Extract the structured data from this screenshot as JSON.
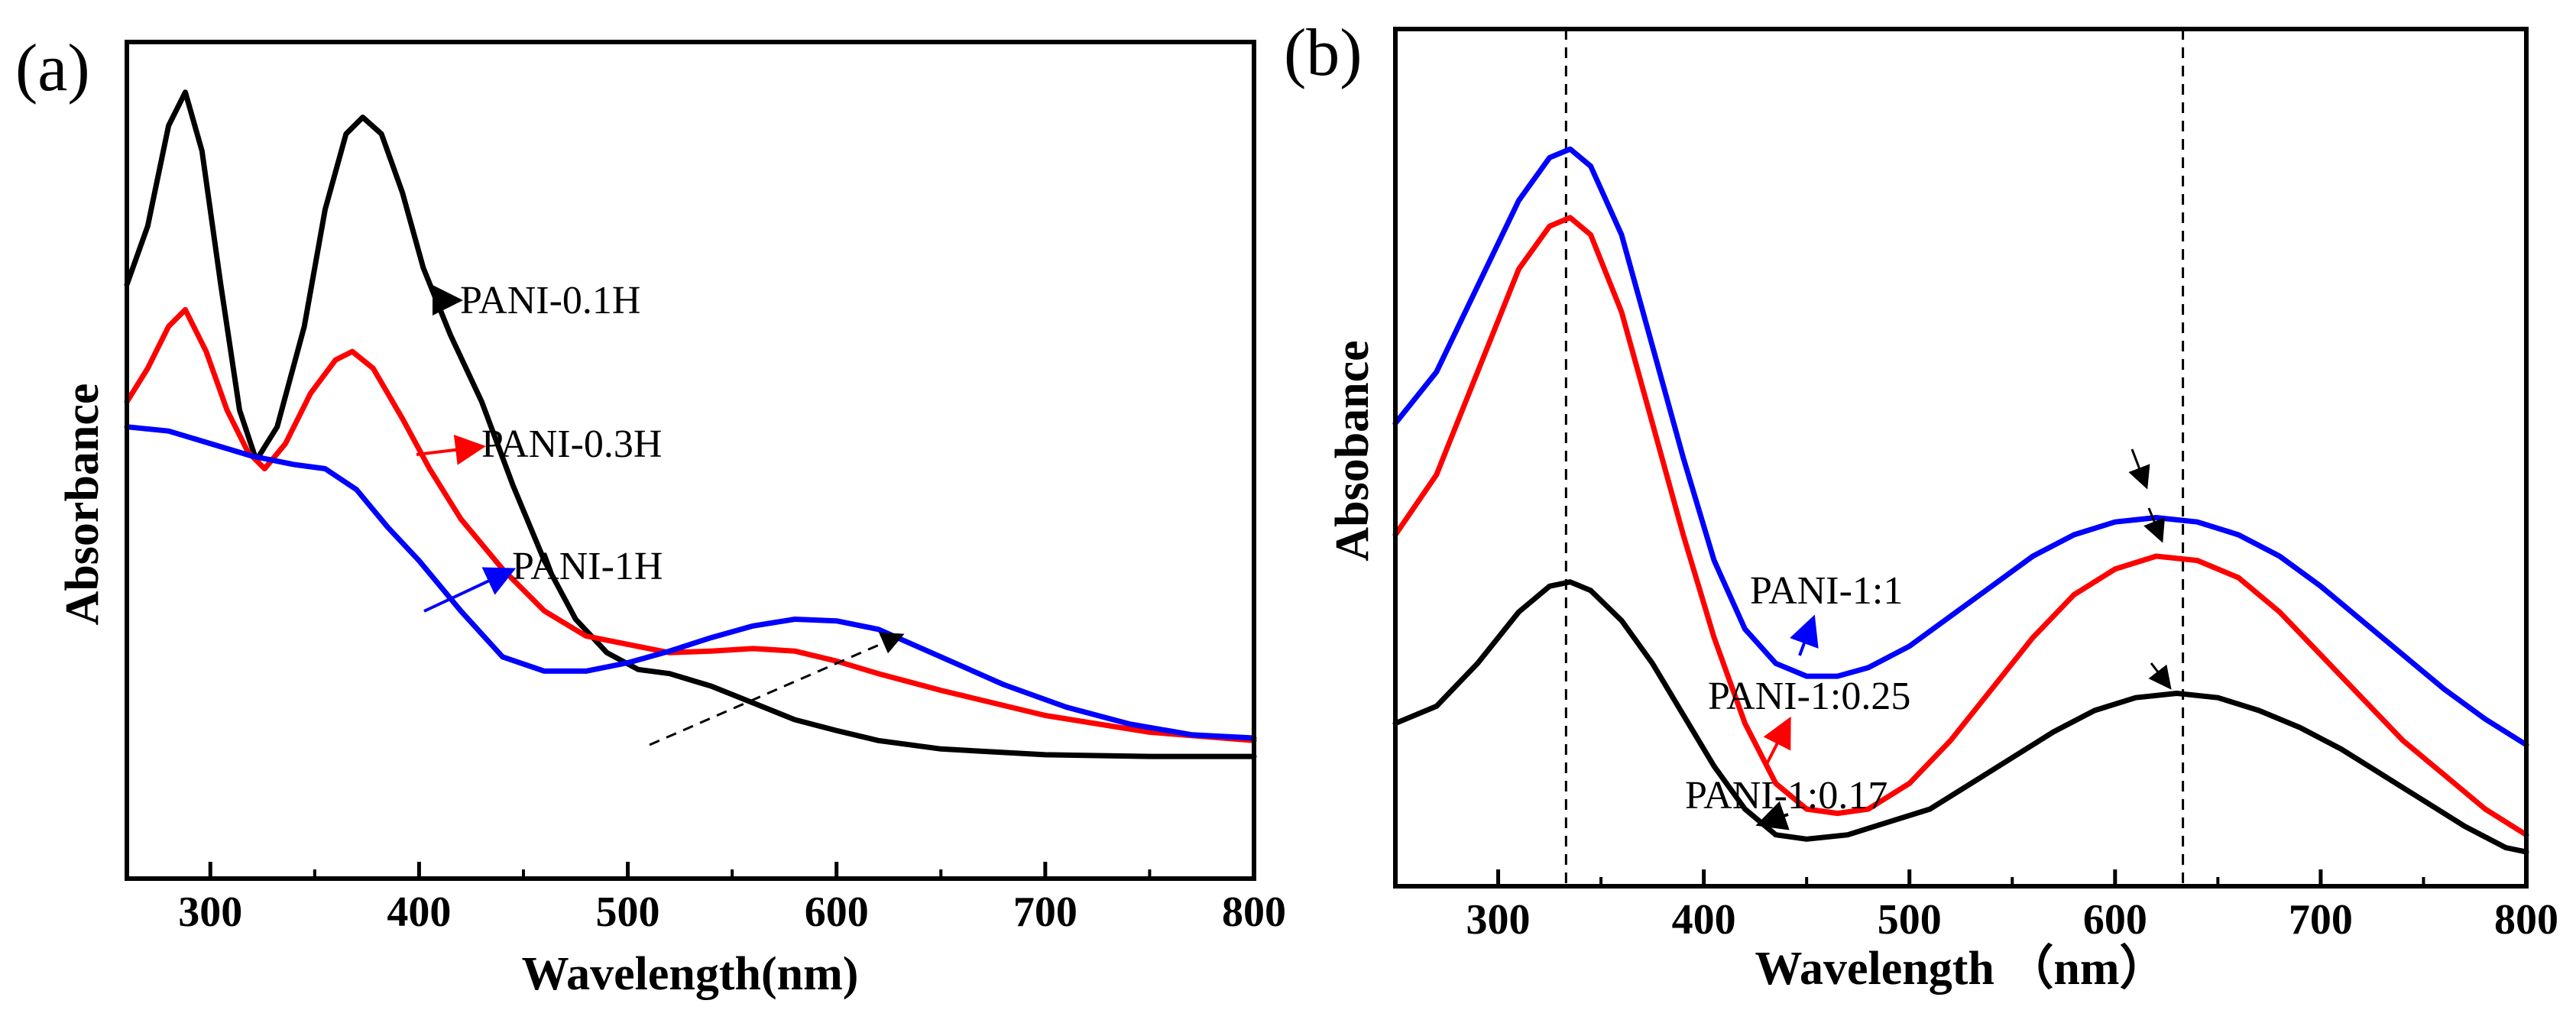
{
  "chart_data": [
    {
      "panel_label": "(a)",
      "type": "line",
      "xlabel": "Wavelength(nm)",
      "ylabel": "Absorbance",
      "xlim": [
        260,
        800
      ],
      "ylim": [
        0,
        1
      ],
      "x_ticks": [
        300,
        400,
        500,
        600,
        700,
        800
      ],
      "y_ticks_shown": false,
      "grid": false,
      "series": [
        {
          "name": "PANI-0.1H",
          "color": "#000000",
          "points": [
            [
              260,
              0.71
            ],
            [
              270,
              0.78
            ],
            [
              280,
              0.9
            ],
            [
              288,
              0.94
            ],
            [
              296,
              0.87
            ],
            [
              305,
              0.71
            ],
            [
              314,
              0.56
            ],
            [
              322,
              0.5
            ],
            [
              332,
              0.54
            ],
            [
              345,
              0.66
            ],
            [
              355,
              0.8
            ],
            [
              365,
              0.89
            ],
            [
              373,
              0.91
            ],
            [
              382,
              0.89
            ],
            [
              392,
              0.82
            ],
            [
              402,
              0.73
            ],
            [
              415,
              0.65
            ],
            [
              430,
              0.57
            ],
            [
              445,
              0.47
            ],
            [
              460,
              0.38
            ],
            [
              475,
              0.31
            ],
            [
              490,
              0.27
            ],
            [
              505,
              0.25
            ],
            [
              520,
              0.245
            ],
            [
              540,
              0.23
            ],
            [
              560,
              0.21
            ],
            [
              580,
              0.19
            ],
            [
              600,
              0.177
            ],
            [
              620,
              0.165
            ],
            [
              650,
              0.155
            ],
            [
              700,
              0.148
            ],
            [
              750,
              0.146
            ],
            [
              800,
              0.146
            ]
          ]
        },
        {
          "name": "PANI-0.3H",
          "color": "#ff0000",
          "points": [
            [
              260,
              0.57
            ],
            [
              270,
              0.61
            ],
            [
              280,
              0.66
            ],
            [
              288,
              0.68
            ],
            [
              298,
              0.63
            ],
            [
              308,
              0.56
            ],
            [
              318,
              0.51
            ],
            [
              326,
              0.49
            ],
            [
              336,
              0.52
            ],
            [
              348,
              0.58
            ],
            [
              360,
              0.62
            ],
            [
              368,
              0.63
            ],
            [
              378,
              0.61
            ],
            [
              392,
              0.55
            ],
            [
              405,
              0.49
            ],
            [
              420,
              0.43
            ],
            [
              440,
              0.37
            ],
            [
              460,
              0.32
            ],
            [
              480,
              0.29
            ],
            [
              500,
              0.28
            ],
            [
              520,
              0.27
            ],
            [
              540,
              0.272
            ],
            [
              560,
              0.275
            ],
            [
              580,
              0.272
            ],
            [
              600,
              0.26
            ],
            [
              620,
              0.245
            ],
            [
              650,
              0.225
            ],
            [
              700,
              0.195
            ],
            [
              750,
              0.175
            ],
            [
              800,
              0.165
            ]
          ]
        },
        {
          "name": "PANI-1H",
          "color": "#0000ff",
          "points": [
            [
              260,
              0.54
            ],
            [
              280,
              0.535
            ],
            [
              300,
              0.52
            ],
            [
              320,
              0.505
            ],
            [
              340,
              0.495
            ],
            [
              355,
              0.49
            ],
            [
              370,
              0.465
            ],
            [
              385,
              0.42
            ],
            [
              400,
              0.38
            ],
            [
              420,
              0.32
            ],
            [
              440,
              0.265
            ],
            [
              460,
              0.248
            ],
            [
              480,
              0.248
            ],
            [
              500,
              0.258
            ],
            [
              520,
              0.272
            ],
            [
              540,
              0.288
            ],
            [
              560,
              0.302
            ],
            [
              580,
              0.31
            ],
            [
              600,
              0.308
            ],
            [
              620,
              0.298
            ],
            [
              650,
              0.265
            ],
            [
              680,
              0.232
            ],
            [
              710,
              0.205
            ],
            [
              740,
              0.185
            ],
            [
              770,
              0.172
            ],
            [
              800,
              0.168
            ]
          ]
        }
      ],
      "annotations": [
        "PANI-0.1H",
        "PANI-0.3H",
        "PANI-1H"
      ]
    },
    {
      "panel_label": "(b)",
      "type": "line",
      "xlabel": "Wavelength （nm）",
      "ylabel": "Absobance",
      "xlim": [
        250,
        800
      ],
      "ylim": [
        0,
        1
      ],
      "x_ticks": [
        300,
        400,
        500,
        600,
        700,
        800
      ],
      "y_ticks_shown": false,
      "grid": false,
      "vlines": [
        333,
        633
      ],
      "series": [
        {
          "name": "PANI-1:1",
          "color": "#0000ff",
          "points": [
            [
              250,
              0.54
            ],
            [
              270,
              0.6
            ],
            [
              290,
              0.7
            ],
            [
              310,
              0.8
            ],
            [
              325,
              0.85
            ],
            [
              335,
              0.86
            ],
            [
              345,
              0.84
            ],
            [
              360,
              0.76
            ],
            [
              375,
              0.63
            ],
            [
              390,
              0.5
            ],
            [
              405,
              0.38
            ],
            [
              420,
              0.3
            ],
            [
              435,
              0.26
            ],
            [
              450,
              0.245
            ],
            [
              465,
              0.245
            ],
            [
              480,
              0.255
            ],
            [
              500,
              0.28
            ],
            [
              520,
              0.315
            ],
            [
              540,
              0.35
            ],
            [
              560,
              0.385
            ],
            [
              580,
              0.41
            ],
            [
              600,
              0.425
            ],
            [
              620,
              0.43
            ],
            [
              640,
              0.425
            ],
            [
              660,
              0.41
            ],
            [
              680,
              0.385
            ],
            [
              700,
              0.35
            ],
            [
              720,
              0.31
            ],
            [
              740,
              0.27
            ],
            [
              760,
              0.23
            ],
            [
              780,
              0.195
            ],
            [
              800,
              0.165
            ]
          ]
        },
        {
          "name": "PANI-1:0.25",
          "color": "#ff0000",
          "points": [
            [
              250,
              0.41
            ],
            [
              270,
              0.48
            ],
            [
              290,
              0.6
            ],
            [
              310,
              0.72
            ],
            [
              325,
              0.77
            ],
            [
              335,
              0.78
            ],
            [
              345,
              0.76
            ],
            [
              360,
              0.67
            ],
            [
              375,
              0.54
            ],
            [
              390,
              0.41
            ],
            [
              405,
              0.29
            ],
            [
              420,
              0.19
            ],
            [
              435,
              0.12
            ],
            [
              450,
              0.09
            ],
            [
              465,
              0.085
            ],
            [
              480,
              0.09
            ],
            [
              500,
              0.12
            ],
            [
              520,
              0.17
            ],
            [
              540,
              0.23
            ],
            [
              560,
              0.29
            ],
            [
              580,
              0.34
            ],
            [
              600,
              0.37
            ],
            [
              620,
              0.385
            ],
            [
              640,
              0.38
            ],
            [
              660,
              0.36
            ],
            [
              680,
              0.32
            ],
            [
              700,
              0.27
            ],
            [
              720,
              0.22
            ],
            [
              740,
              0.17
            ],
            [
              760,
              0.13
            ],
            [
              780,
              0.09
            ],
            [
              800,
              0.06
            ]
          ]
        },
        {
          "name": "PANI-1:0.17",
          "color": "#000000",
          "points": [
            [
              250,
              0.19
            ],
            [
              270,
              0.21
            ],
            [
              290,
              0.26
            ],
            [
              310,
              0.32
            ],
            [
              325,
              0.35
            ],
            [
              335,
              0.355
            ],
            [
              345,
              0.345
            ],
            [
              360,
              0.31
            ],
            [
              375,
              0.26
            ],
            [
              390,
              0.2
            ],
            [
              405,
              0.14
            ],
            [
              420,
              0.09
            ],
            [
              435,
              0.06
            ],
            [
              450,
              0.055
            ],
            [
              470,
              0.06
            ],
            [
              490,
              0.075
            ],
            [
              510,
              0.09
            ],
            [
              530,
              0.12
            ],
            [
              550,
              0.15
            ],
            [
              570,
              0.18
            ],
            [
              590,
              0.205
            ],
            [
              610,
              0.22
            ],
            [
              630,
              0.225
            ],
            [
              650,
              0.22
            ],
            [
              670,
              0.205
            ],
            [
              690,
              0.185
            ],
            [
              710,
              0.16
            ],
            [
              730,
              0.13
            ],
            [
              750,
              0.1
            ],
            [
              770,
              0.07
            ],
            [
              790,
              0.045
            ],
            [
              800,
              0.04
            ]
          ]
        }
      ],
      "annotations": [
        "PANI-1:1",
        "PANI-1:0.25",
        "PANI-1:0.17"
      ]
    }
  ]
}
